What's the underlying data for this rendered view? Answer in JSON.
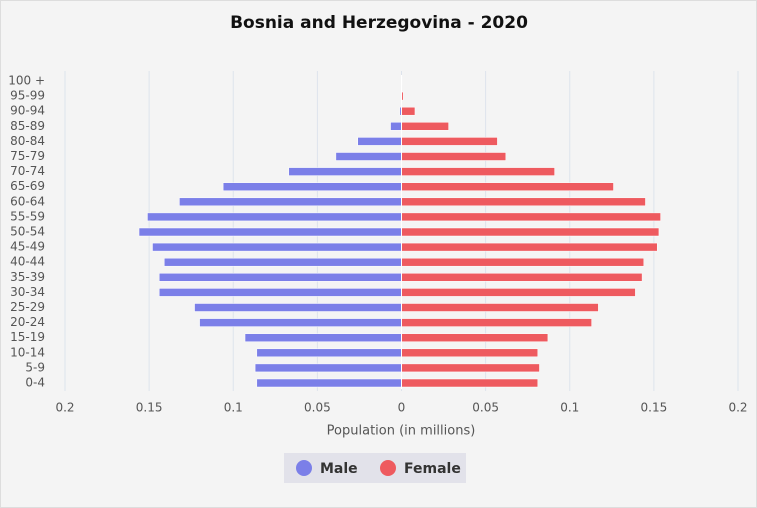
{
  "chart_data": {
    "type": "pyramid",
    "title": "Bosnia and Herzegovina - 2020",
    "x_label": "Population (in millions)",
    "categories": [
      "0-4",
      "5-9",
      "10-14",
      "15-19",
      "20-24",
      "25-29",
      "30-34",
      "35-39",
      "40-44",
      "45-49",
      "50-54",
      "55-59",
      "60-64",
      "65-69",
      "70-74",
      "75-79",
      "80-84",
      "85-89",
      "90-94",
      "95-99",
      "100 +"
    ],
    "series": [
      {
        "name": "Male",
        "color": "#7b7fe8",
        "values": [
          -0.086,
          -0.087,
          -0.086,
          -0.093,
          -0.12,
          -0.123,
          -0.144,
          -0.144,
          -0.141,
          -0.148,
          -0.156,
          -0.151,
          -0.132,
          -0.106,
          -0.067,
          -0.039,
          -0.026,
          -0.0065,
          -0.001,
          -0.0002,
          0
        ]
      },
      {
        "name": "Female",
        "color": "#ee5a5f",
        "values": [
          0.081,
          0.082,
          0.081,
          0.087,
          0.113,
          0.117,
          0.139,
          0.143,
          0.144,
          0.152,
          0.153,
          0.154,
          0.145,
          0.126,
          0.091,
          0.062,
          0.057,
          0.028,
          0.008,
          0.001,
          0.0002
        ]
      }
    ],
    "xlim": [
      -0.2,
      0.2
    ],
    "xticks": [
      {
        "value": -0.2,
        "label": "0.2"
      },
      {
        "value": -0.15,
        "label": "0.15"
      },
      {
        "value": -0.1,
        "label": "0.1"
      },
      {
        "value": -0.05,
        "label": "0.05"
      },
      0,
      0.05,
      0.1,
      0.15,
      0.2
    ],
    "grid": true
  }
}
